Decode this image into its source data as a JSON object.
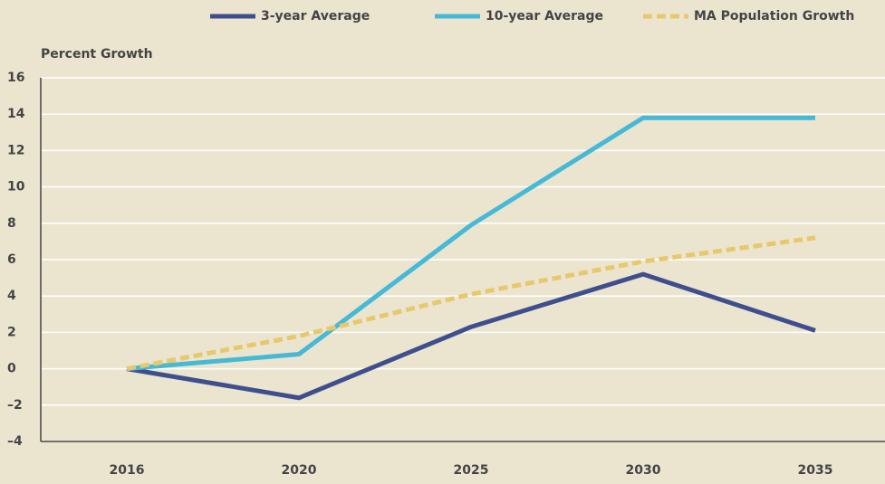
{
  "chart_data": {
    "type": "line",
    "y_axis_label": "Percent Growth",
    "categories": [
      "2016",
      "2020",
      "2025",
      "2030",
      "2035"
    ],
    "series": [
      {
        "name": "3-year Average",
        "color": "#3f4f8e",
        "values": [
          0,
          -1.6,
          2.3,
          5.2,
          2.1
        ]
      },
      {
        "name": "10-year Average",
        "color": "#45b9d5",
        "values": [
          0,
          0.8,
          7.9,
          13.8,
          13.8
        ]
      },
      {
        "name": "MA Population Growth",
        "color": "#e8c86c",
        "dashed": true,
        "values": [
          0,
          1.8,
          4.1,
          5.9,
          7.2
        ]
      }
    ],
    "ylim": [
      -4,
      16
    ],
    "yticks": [
      {
        "value": -4,
        "label": "–4"
      },
      {
        "value": -2,
        "label": "–2"
      },
      0,
      2,
      4,
      6,
      8,
      10,
      12,
      14,
      16
    ],
    "grid": true,
    "legend": "top"
  }
}
